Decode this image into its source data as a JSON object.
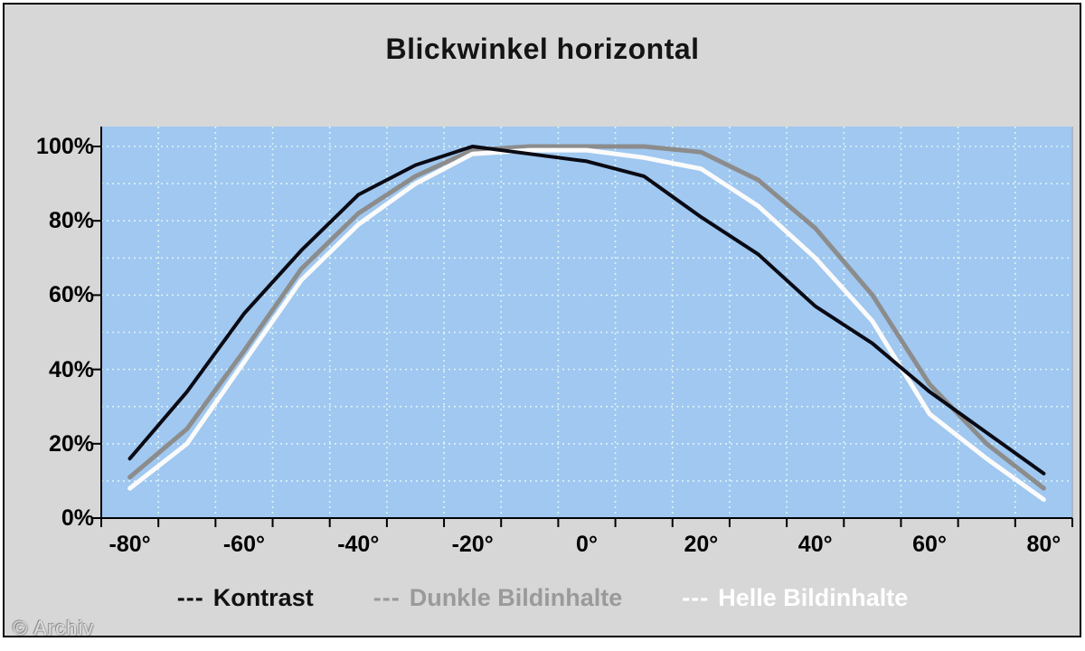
{
  "title": "Blickwinkel horizontal",
  "watermark": "© Archiv",
  "colors": {
    "frame_bg": "#d7d7d7",
    "plot_bg": "#a0c8f0",
    "grid": "#dcf4f6",
    "axis": "#000000",
    "kontrast": "#0a0a14",
    "dunkle": "#8c8c8c",
    "helle": "#fbfbfb"
  },
  "legend": {
    "items": [
      {
        "dashes": "---",
        "label": "Kontrast",
        "color": "#111111"
      },
      {
        "dashes": "---",
        "label": "Dunkle Bildinhalte",
        "color": "#9a9a9a"
      },
      {
        "dashes": "---",
        "label": "Helle Bildinhalte",
        "color": "#ffffff"
      }
    ]
  },
  "chart_data": {
    "type": "line",
    "title": "Blickwinkel horizontal",
    "xlabel": "",
    "ylabel": "",
    "x_unit": "degrees",
    "y_unit": "percent",
    "ylim": [
      0,
      100
    ],
    "grid": "dashed cyan, horizontal every 10%, vertical every 10 degrees",
    "legend_position": "bottom",
    "categories": [
      -80,
      -70,
      -60,
      -50,
      -40,
      -30,
      -20,
      -10,
      0,
      10,
      20,
      30,
      40,
      50,
      60,
      70,
      80
    ],
    "x_tick_labels": [
      "-80°",
      "-60°",
      "-40°",
      "-20°",
      "0°",
      "20°",
      "40°",
      "60°",
      "80°"
    ],
    "y_tick_labels": [
      "0%",
      "20%",
      "40%",
      "60%",
      "80%",
      "100%"
    ],
    "series": [
      {
        "name": "Kontrast",
        "color": "#0a0a14",
        "values": [
          16,
          34,
          55,
          72,
          87,
          95,
          100,
          98,
          96,
          92,
          81,
          71,
          57,
          47,
          34,
          23,
          12
        ]
      },
      {
        "name": "Dunkle Bildinhalte",
        "color": "#8c8c8c",
        "values": [
          11,
          24,
          45,
          67,
          82,
          92,
          99,
          100,
          100,
          100,
          98.5,
          91,
          78,
          60,
          36,
          20,
          8
        ]
      },
      {
        "name": "Helle Bildinhalte",
        "color": "#fbfbfb",
        "values": [
          8,
          20,
          42,
          64,
          79,
          90,
          98,
          99,
          99,
          97,
          94,
          84,
          70,
          53,
          28,
          16,
          5
        ]
      }
    ]
  }
}
